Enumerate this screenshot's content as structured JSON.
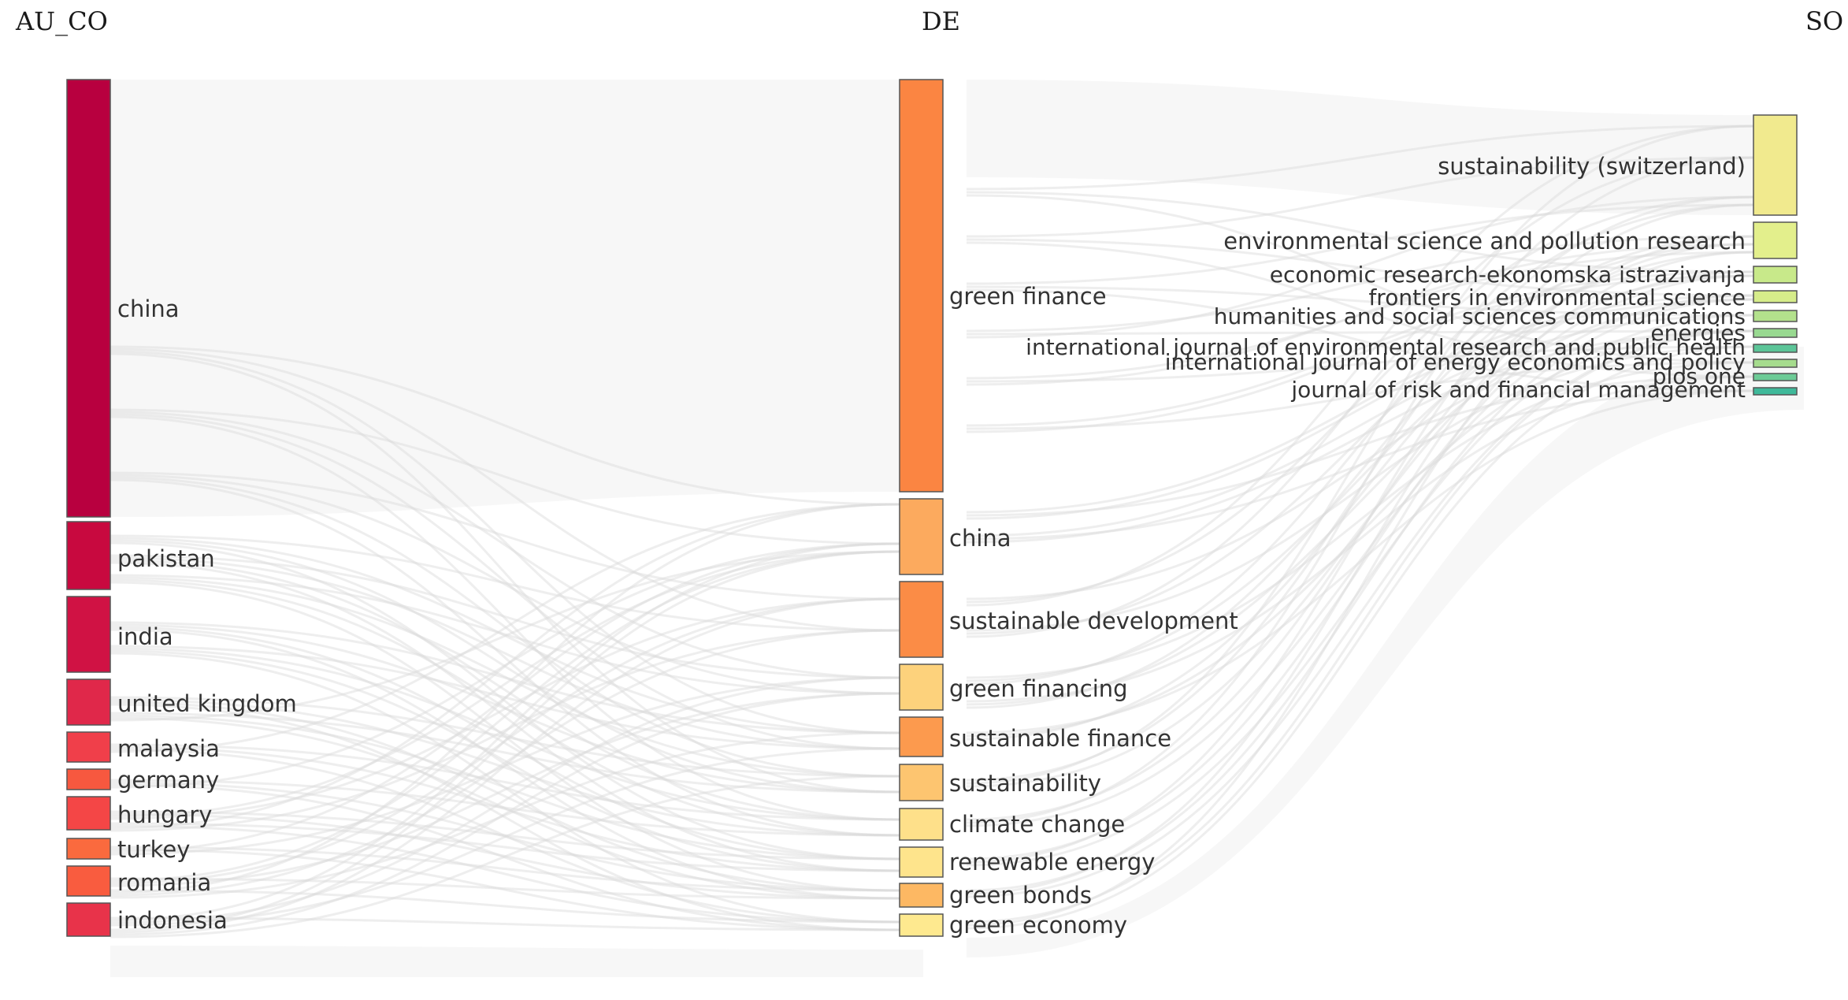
{
  "columns": [
    "AU_CO",
    "DE",
    "SO"
  ],
  "nodes": {
    "AU_CO": [
      {
        "label": "china",
        "color": "#b8003f"
      },
      {
        "label": "pakistan",
        "color": "#c8093f"
      },
      {
        "label": "india",
        "color": "#d01244"
      },
      {
        "label": "united kingdom",
        "color": "#e0284a"
      },
      {
        "label": "malaysia",
        "color": "#f03f4a"
      },
      {
        "label": "germany",
        "color": "#f7583f"
      },
      {
        "label": "hungary",
        "color": "#f44646"
      },
      {
        "label": "turkey",
        "color": "#fa6a3e"
      },
      {
        "label": "romania",
        "color": "#f95c3f"
      },
      {
        "label": "indonesia",
        "color": "#e8334a"
      }
    ],
    "DE": [
      {
        "label": "green finance",
        "color": "#fb8542"
      },
      {
        "label": "china",
        "color": "#fcaa5e"
      },
      {
        "label": "sustainable development",
        "color": "#fb8c46"
      },
      {
        "label": "green financing",
        "color": "#fdd27c"
      },
      {
        "label": "sustainable finance",
        "color": "#fc9a4e"
      },
      {
        "label": "sustainability",
        "color": "#fdc570"
      },
      {
        "label": "climate change",
        "color": "#fee08a"
      },
      {
        "label": "renewable energy",
        "color": "#fee48c"
      },
      {
        "label": "green bonds",
        "color": "#fdb863"
      },
      {
        "label": "green economy",
        "color": "#fee98f"
      }
    ],
    "SO": [
      {
        "label": "sustainability (switzerland)",
        "color": "#f1ea8e"
      },
      {
        "label": "environmental science and pollution research",
        "color": "#e3ef8c"
      },
      {
        "label": "economic research-ekonomska istrazivanja",
        "color": "#c8e98a"
      },
      {
        "label": "frontiers in environmental science",
        "color": "#d6ec8a"
      },
      {
        "label": "humanities and social sciences communications",
        "color": "#b3e18c"
      },
      {
        "label": "energies",
        "color": "#98d990"
      },
      {
        "label": "international journal of environmental research and public health",
        "color": "#5cc598"
      },
      {
        "label": "international journal of energy economics and policy",
        "color": "#a6dc8d"
      },
      {
        "label": "plos one",
        "color": "#6dcb96"
      },
      {
        "label": "journal of risk and financial management",
        "color": "#3fb99a"
      }
    ]
  }
}
